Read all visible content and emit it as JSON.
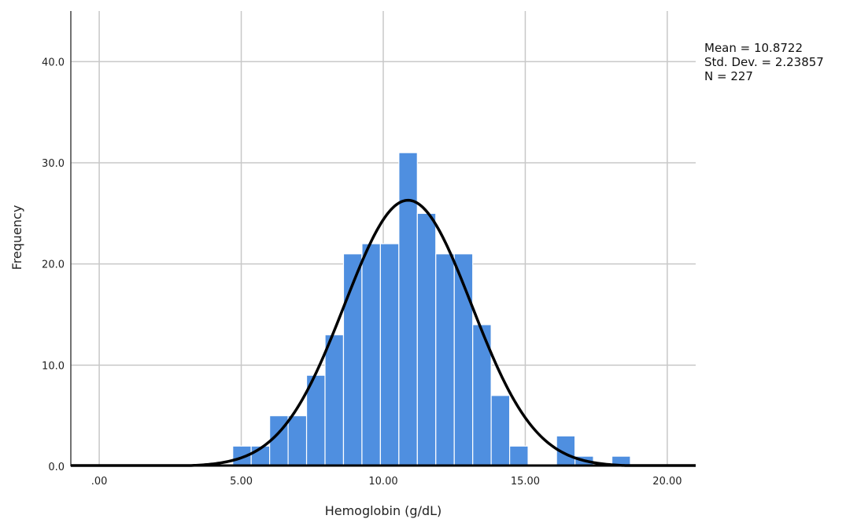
{
  "chart_data": {
    "type": "bar",
    "subtype": "histogram",
    "xlabel": "Hemoglobin (g/dL)",
    "ylabel": "Frequency",
    "xlim": [
      -1.0,
      21.0
    ],
    "ylim": [
      0,
      45
    ],
    "x_ticks": [
      {
        "value": 0,
        "label": ".00"
      },
      {
        "value": 5,
        "label": "5.00"
      },
      {
        "value": 10,
        "label": "10.00"
      },
      {
        "value": 15,
        "label": "15.00"
      },
      {
        "value": 20,
        "label": "20.00"
      }
    ],
    "y_ticks": [
      {
        "value": 0,
        "label": "0.0"
      },
      {
        "value": 10,
        "label": "10.0"
      },
      {
        "value": 20,
        "label": "20.0"
      },
      {
        "value": 30,
        "label": "30.0"
      },
      {
        "value": 40,
        "label": "40.0"
      }
    ],
    "grid": true,
    "bar_color": "#4f8fe0",
    "bins": [
      {
        "start": 4.7,
        "end": 5.35,
        "count": 2
      },
      {
        "start": 5.35,
        "end": 6.0,
        "count": 2
      },
      {
        "start": 6.0,
        "end": 6.65,
        "count": 5
      },
      {
        "start": 6.65,
        "end": 7.3,
        "count": 5
      },
      {
        "start": 7.3,
        "end": 7.95,
        "count": 9
      },
      {
        "start": 7.95,
        "end": 8.6,
        "count": 13
      },
      {
        "start": 8.6,
        "end": 9.25,
        "count": 21
      },
      {
        "start": 9.25,
        "end": 9.9,
        "count": 22
      },
      {
        "start": 9.9,
        "end": 10.55,
        "count": 22
      },
      {
        "start": 10.55,
        "end": 11.2,
        "count": 31
      },
      {
        "start": 11.2,
        "end": 11.85,
        "count": 25
      },
      {
        "start": 11.85,
        "end": 12.5,
        "count": 21
      },
      {
        "start": 12.5,
        "end": 13.15,
        "count": 21
      },
      {
        "start": 13.15,
        "end": 13.8,
        "count": 14
      },
      {
        "start": 13.8,
        "end": 14.45,
        "count": 7
      },
      {
        "start": 14.45,
        "end": 15.1,
        "count": 2
      },
      {
        "start": 16.1,
        "end": 16.75,
        "count": 3
      },
      {
        "start": 16.75,
        "end": 17.4,
        "count": 1
      },
      {
        "start": 18.05,
        "end": 18.7,
        "count": 1
      }
    ],
    "normal_curve": {
      "mean": 10.8722,
      "std_dev": 2.23857,
      "n": 227,
      "bin_width": 0.65,
      "color": "#000000"
    },
    "stats_lines": [
      "Mean = 10.8722",
      "Std. Dev. = 2.23857",
      "N = 227"
    ]
  }
}
